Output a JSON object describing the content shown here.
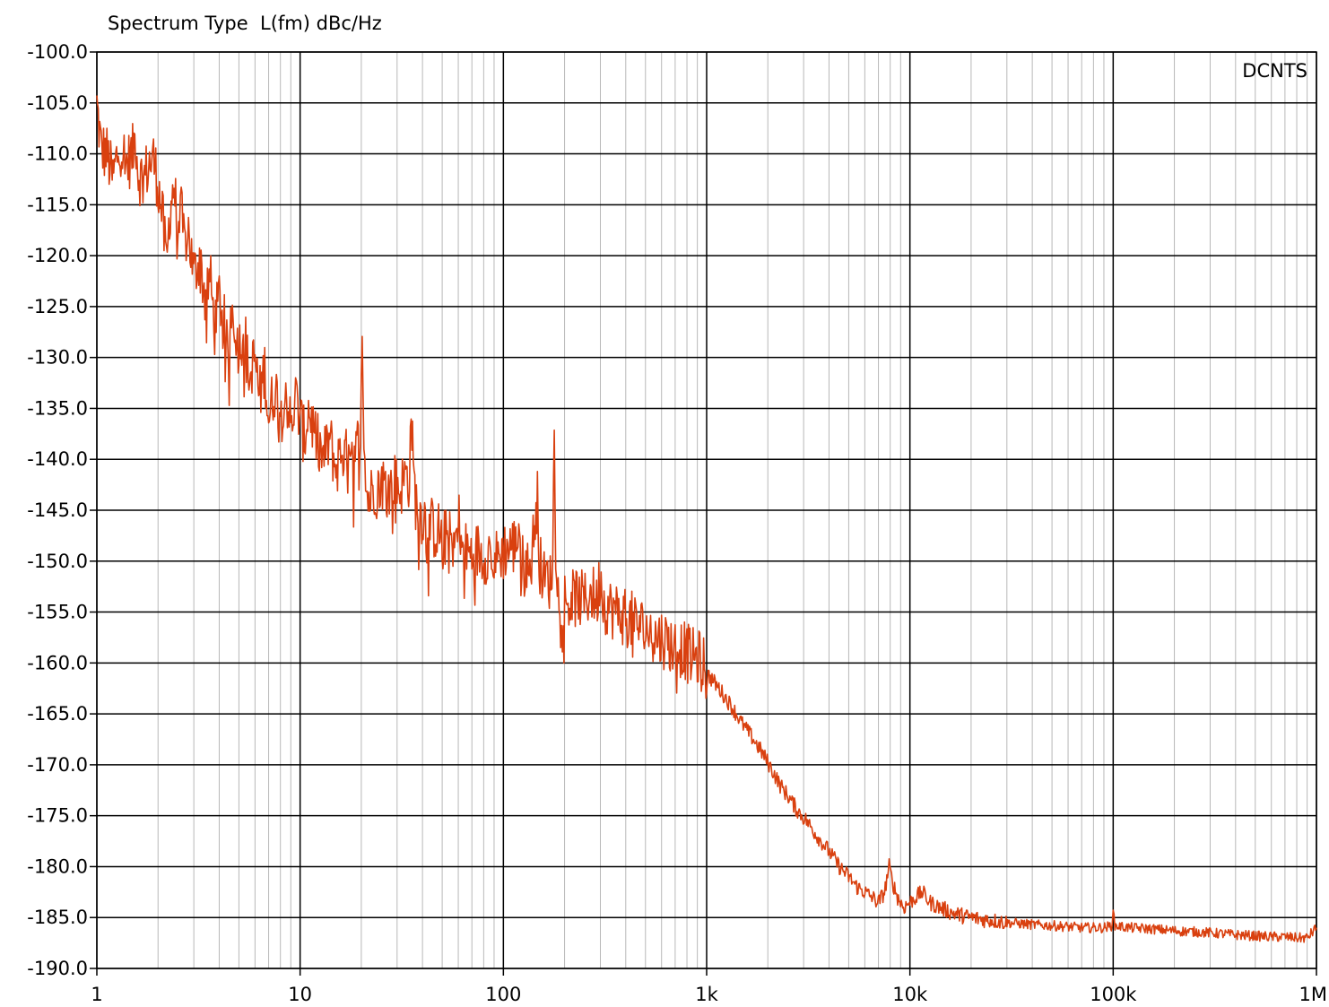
{
  "chart_data": {
    "type": "line",
    "title": "Spectrum Type  L(fm) dBc/Hz",
    "annotation": "DCNTS",
    "x_scale": "log",
    "xlim": [
      1,
      1000000
    ],
    "ylim": [
      -190,
      -100
    ],
    "grid": true,
    "x_ticks": [
      {
        "value": 1,
        "label": "1"
      },
      {
        "value": 10,
        "label": "10"
      },
      {
        "value": 100,
        "label": "100"
      },
      {
        "value": 1000,
        "label": "1k"
      },
      {
        "value": 10000,
        "label": "10k"
      },
      {
        "value": 100000,
        "label": "100k"
      },
      {
        "value": 1000000,
        "label": "1M"
      }
    ],
    "y_ticks": [
      {
        "value": -100,
        "label": "-100.0"
      },
      {
        "value": -105,
        "label": "-105.0"
      },
      {
        "value": -110,
        "label": "-110.0"
      },
      {
        "value": -115,
        "label": "-115.0"
      },
      {
        "value": -120,
        "label": "-120.0"
      },
      {
        "value": -125,
        "label": "-125.0"
      },
      {
        "value": -130,
        "label": "-130.0"
      },
      {
        "value": -135,
        "label": "-135.0"
      },
      {
        "value": -140,
        "label": "-140.0"
      },
      {
        "value": -145,
        "label": "-145.0"
      },
      {
        "value": -150,
        "label": "-150.0"
      },
      {
        "value": -155,
        "label": "-155.0"
      },
      {
        "value": -160,
        "label": "-160.0"
      },
      {
        "value": -165,
        "label": "-165.0"
      },
      {
        "value": -170,
        "label": "-170.0"
      },
      {
        "value": -175,
        "label": "-175.0"
      },
      {
        "value": -180,
        "label": "-180.0"
      },
      {
        "value": -185,
        "label": "-185.0"
      },
      {
        "value": -190,
        "label": "-190.0"
      }
    ],
    "series": [
      {
        "color": "#d9400f",
        "points": [
          [
            1,
            -105.2
          ],
          [
            1.05,
            -109.5
          ],
          [
            1.12,
            -110
          ],
          [
            1.2,
            -112.5
          ],
          [
            1.25,
            -110.5
          ],
          [
            1.3,
            -109
          ],
          [
            1.4,
            -111
          ],
          [
            1.5,
            -110
          ],
          [
            1.55,
            -108
          ],
          [
            1.6,
            -112
          ],
          [
            1.7,
            -112.5
          ],
          [
            1.8,
            -111
          ],
          [
            1.9,
            -110.5
          ],
          [
            2.0,
            -113
          ],
          [
            2.1,
            -116
          ],
          [
            2.2,
            -121
          ],
          [
            2.3,
            -115
          ],
          [
            2.4,
            -113
          ],
          [
            2.5,
            -118
          ],
          [
            2.6,
            -116
          ],
          [
            2.7,
            -119
          ],
          [
            2.8,
            -117
          ],
          [
            3.0,
            -122
          ],
          [
            3.2,
            -120
          ],
          [
            3.4,
            -124
          ],
          [
            3.6,
            -122
          ],
          [
            3.8,
            -127
          ],
          [
            4.0,
            -124
          ],
          [
            4.2,
            -126
          ],
          [
            4.4,
            -130
          ],
          [
            4.6,
            -125
          ],
          [
            4.8,
            -127
          ],
          [
            5.0,
            -129
          ],
          [
            5.3,
            -127
          ],
          [
            5.6,
            -132
          ],
          [
            6.0,
            -130
          ],
          [
            6.3,
            -134
          ],
          [
            6.7,
            -131
          ],
          [
            7.0,
            -136
          ],
          [
            7.5,
            -133
          ],
          [
            8.0,
            -135
          ],
          [
            8.5,
            -133
          ],
          [
            9.0,
            -137
          ],
          [
            9.5,
            -134
          ],
          [
            10,
            -136
          ],
          [
            10.5,
            -138
          ],
          [
            11,
            -135
          ],
          [
            12,
            -138
          ],
          [
            13,
            -140
          ],
          [
            14,
            -138
          ],
          [
            15,
            -141
          ],
          [
            16,
            -139
          ],
          [
            17,
            -140
          ],
          [
            18,
            -141
          ],
          [
            19,
            -139
          ],
          [
            19.8,
            -137
          ],
          [
            20.2,
            -130
          ],
          [
            20.6,
            -137
          ],
          [
            21,
            -143
          ],
          [
            22,
            -144
          ],
          [
            23,
            -142.5
          ],
          [
            24,
            -143
          ],
          [
            25,
            -142
          ],
          [
            27,
            -143
          ],
          [
            29,
            -142
          ],
          [
            31,
            -143
          ],
          [
            33,
            -141.5
          ],
          [
            34.5,
            -142
          ],
          [
            35.2,
            -135
          ],
          [
            36,
            -141
          ],
          [
            37,
            -144
          ],
          [
            38,
            -145
          ],
          [
            40,
            -145.5
          ],
          [
            42,
            -146
          ],
          [
            44,
            -146.5
          ],
          [
            46,
            -147
          ],
          [
            48,
            -147
          ],
          [
            50,
            -148
          ],
          [
            53,
            -147.5
          ],
          [
            56,
            -148.5
          ],
          [
            58,
            -148
          ],
          [
            60,
            -144
          ],
          [
            61,
            -148
          ],
          [
            63,
            -149
          ],
          [
            66,
            -149
          ],
          [
            70,
            -149.5
          ],
          [
            75,
            -149
          ],
          [
            80,
            -149.5
          ],
          [
            85,
            -149
          ],
          [
            90,
            -150
          ],
          [
            95,
            -149.5
          ],
          [
            100,
            -149
          ],
          [
            105,
            -148.7
          ],
          [
            110,
            -148.5
          ],
          [
            115,
            -148.5
          ],
          [
            118,
            -147
          ],
          [
            120,
            -146
          ],
          [
            122,
            -150
          ],
          [
            128,
            -150.5
          ],
          [
            135,
            -151
          ],
          [
            140,
            -148
          ],
          [
            147,
            -143
          ],
          [
            150,
            -150
          ],
          [
            155,
            -151
          ],
          [
            160,
            -152
          ],
          [
            165,
            -151.5
          ],
          [
            170,
            -152
          ],
          [
            175,
            -150
          ],
          [
            178,
            -136.5
          ],
          [
            181,
            -148
          ],
          [
            186,
            -153
          ],
          [
            195,
            -153.5
          ],
          [
            210,
            -154
          ],
          [
            230,
            -153.5
          ],
          [
            250,
            -154
          ],
          [
            270,
            -153
          ],
          [
            290,
            -154
          ],
          [
            300,
            -151
          ],
          [
            310,
            -154
          ],
          [
            330,
            -154.5
          ],
          [
            360,
            -155
          ],
          [
            400,
            -155.5
          ],
          [
            440,
            -156
          ],
          [
            480,
            -156.5
          ],
          [
            520,
            -157
          ],
          [
            560,
            -157.5
          ],
          [
            600,
            -157.5
          ],
          [
            650,
            -158
          ],
          [
            700,
            -158.5
          ],
          [
            750,
            -158.5
          ],
          [
            800,
            -159
          ],
          [
            850,
            -159.5
          ],
          [
            900,
            -159.5
          ],
          [
            950,
            -160
          ],
          [
            1000,
            -161
          ],
          [
            1100,
            -162
          ],
          [
            1200,
            -163
          ],
          [
            1350,
            -164.5
          ],
          [
            1500,
            -166
          ],
          [
            1700,
            -167.5
          ],
          [
            1900,
            -169
          ],
          [
            2100,
            -170.5
          ],
          [
            2300,
            -172
          ],
          [
            2500,
            -173
          ],
          [
            2800,
            -174.5
          ],
          [
            3100,
            -175.5
          ],
          [
            3500,
            -177
          ],
          [
            4000,
            -178.5
          ],
          [
            4500,
            -180
          ],
          [
            5000,
            -181
          ],
          [
            5500,
            -182
          ],
          [
            6000,
            -182.5
          ],
          [
            6500,
            -183
          ],
          [
            7000,
            -183.5
          ],
          [
            7500,
            -182.5
          ],
          [
            7900,
            -180
          ],
          [
            8200,
            -181.5
          ],
          [
            8700,
            -183
          ],
          [
            9300,
            -184
          ],
          [
            10000,
            -183.5
          ],
          [
            10700,
            -183
          ],
          [
            11500,
            -182.5
          ],
          [
            12500,
            -183.5
          ],
          [
            14000,
            -184
          ],
          [
            16000,
            -184.5
          ],
          [
            18000,
            -184.8
          ],
          [
            20000,
            -185
          ],
          [
            23000,
            -185.2
          ],
          [
            26000,
            -185.3
          ],
          [
            30000,
            -185.5
          ],
          [
            35000,
            -185.6
          ],
          [
            40000,
            -185.7
          ],
          [
            50000,
            -185.8
          ],
          [
            60000,
            -185.9
          ],
          [
            70000,
            -186
          ],
          [
            80000,
            -186
          ],
          [
            90000,
            -186
          ],
          [
            98000,
            -185.8
          ],
          [
            100000,
            -184.5
          ],
          [
            102000,
            -185.8
          ],
          [
            120000,
            -186
          ],
          [
            150000,
            -186.1
          ],
          [
            200000,
            -186.3
          ],
          [
            250000,
            -186.4
          ],
          [
            300000,
            -186.5
          ],
          [
            350000,
            -186.6
          ],
          [
            400000,
            -186.7
          ],
          [
            500000,
            -186.8
          ],
          [
            600000,
            -186.9
          ],
          [
            700000,
            -186.9
          ],
          [
            800000,
            -187
          ],
          [
            900000,
            -187
          ],
          [
            1000000,
            -186
          ]
        ],
        "noise_bands": [
          {
            "from": 1,
            "to": 1000,
            "amp": 3
          },
          {
            "from": 1000,
            "to": 30000,
            "amp": 0.8
          },
          {
            "from": 30000,
            "to": 1000000,
            "amp": 0.5
          }
        ]
      }
    ]
  }
}
